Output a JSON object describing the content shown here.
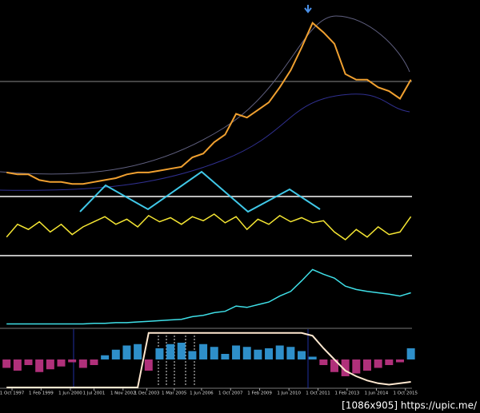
{
  "chart_data": [
    {
      "type": "line",
      "color": "#f0a030",
      "ylim": [
        0,
        100
      ],
      "xlim": [
        1997.2,
        2016.05
      ],
      "x": [
        1997.5,
        1998,
        1998.5,
        1999,
        1999.5,
        2000,
        2000.5,
        2001,
        2001.5,
        2002,
        2002.5,
        2003,
        2003.5,
        2004,
        2004.5,
        2005,
        2005.5,
        2006,
        2006.5,
        2007,
        2007.5,
        2008,
        2008.5,
        2009,
        2009.5,
        2010,
        2010.5,
        2011,
        2011.5,
        2012,
        2012.5,
        2013,
        2013.5,
        2014,
        2014.5,
        2015,
        2015.5,
        2016
      ],
      "values": [
        11,
        10,
        10,
        7,
        6,
        6,
        5,
        5,
        6,
        7,
        8,
        10,
        11,
        11,
        12,
        13,
        14,
        19,
        21,
        27,
        31,
        42,
        40,
        44,
        48,
        56,
        65,
        77,
        90,
        85,
        79,
        63,
        60,
        60,
        56,
        54,
        50,
        60
      ],
      "xticks": [
        {
          "value": 1997.75,
          "label": "1 Oct 1997"
        },
        {
          "value": 1999.08,
          "label": "1 Feb 1999"
        },
        {
          "value": 2000.42,
          "label": "1 Jun 2000"
        },
        {
          "value": 2001.5,
          "label": "1 Jul 2001"
        },
        {
          "value": 2002.83,
          "label": "1 Nov 2002"
        },
        {
          "value": 2003.92,
          "label": "1 Dec 2003"
        },
        {
          "value": 2005.17,
          "label": "1 Mar 2005"
        },
        {
          "value": 2006.42,
          "label": "1 Jun 2006"
        },
        {
          "value": 2007.75,
          "label": "1 Oct 2007"
        },
        {
          "value": 2009.08,
          "label": "1 Feb 2009"
        },
        {
          "value": 2010.42,
          "label": "1 Jun 2010"
        },
        {
          "value": 2011.75,
          "label": "1 Oct 2011"
        },
        {
          "value": 2013.08,
          "label": "1 Feb 2013"
        },
        {
          "value": 2014.42,
          "label": "1 Jun 2014"
        },
        {
          "value": 2015.75,
          "label": "1 Oct 2015"
        }
      ],
      "watermark": "[1086x905] https://upic.me/"
    },
    {
      "type": "line",
      "color": "#f5e633",
      "ylim": [
        0,
        100
      ],
      "values": [
        30,
        55,
        45,
        60,
        40,
        55,
        35,
        50,
        60,
        70,
        55,
        65,
        50,
        72,
        60,
        68,
        55,
        70,
        62,
        75,
        58,
        70,
        45,
        65,
        55,
        72,
        60,
        68,
        58,
        62,
        40,
        25,
        45,
        30,
        50,
        35,
        40,
        70
      ]
    },
    {
      "type": "line",
      "color": "#3fe0e8",
      "ylim": [
        0,
        100
      ],
      "values": [
        3,
        3,
        3,
        3,
        3,
        3,
        3,
        3,
        4,
        4,
        5,
        5,
        6,
        7,
        8,
        9,
        10,
        14,
        16,
        20,
        22,
        30,
        28,
        32,
        36,
        45,
        52,
        68,
        85,
        78,
        72,
        60,
        55,
        52,
        50,
        48,
        45,
        50
      ]
    },
    {
      "type": "bar",
      "color": "#2e8fc9",
      "negative_color": "#b0307a",
      "ylim": [
        -100,
        100
      ],
      "values": [
        -30,
        -40,
        -20,
        -45,
        -35,
        -25,
        -10,
        -30,
        -20,
        15,
        35,
        50,
        55,
        -40,
        40,
        55,
        60,
        30,
        55,
        45,
        20,
        50,
        45,
        35,
        40,
        50,
        45,
        30,
        10,
        -20,
        -45,
        -60,
        -50,
        -40,
        -30,
        -20,
        -10,
        40
      ],
      "line": {
        "color": "#ffe8d0",
        "values": [
          -100,
          -100,
          -100,
          -100,
          -100,
          -100,
          -100,
          -100,
          -100,
          -100,
          -100,
          -100,
          -100,
          95,
          95,
          95,
          95,
          95,
          95,
          95,
          95,
          95,
          95,
          95,
          95,
          95,
          95,
          95,
          85,
          40,
          0,
          -40,
          -60,
          -75,
          -85,
          -90,
          -85,
          -80
        ]
      }
    }
  ]
}
